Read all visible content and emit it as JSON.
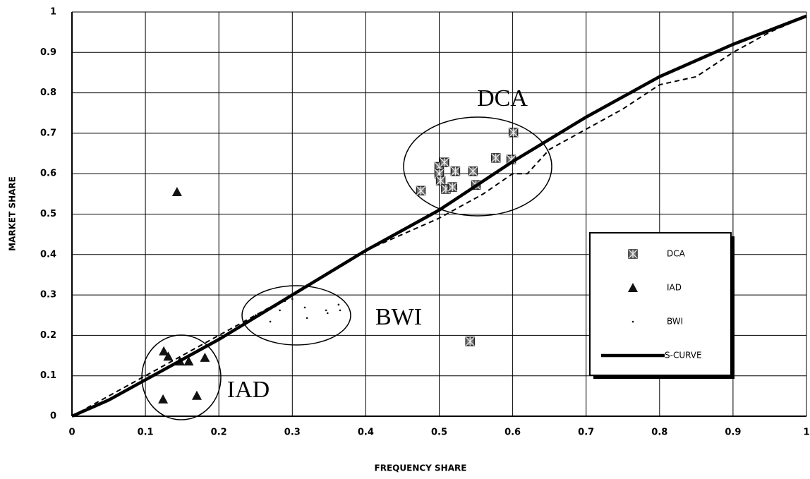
{
  "chart_data": {
    "type": "scatter",
    "xlabel": "FREQUENCY SHARE",
    "ylabel": "MARKET SHARE",
    "xlim": [
      0,
      1
    ],
    "ylim": [
      0,
      1
    ],
    "xticks": [
      0,
      0.1,
      0.2,
      0.3,
      0.4,
      0.5,
      0.6,
      0.7,
      0.8,
      0.9,
      1
    ],
    "yticks": [
      0,
      0.1,
      0.2,
      0.3,
      0.4,
      0.5,
      0.6,
      0.7,
      0.8,
      0.9,
      1
    ],
    "grid": true,
    "legend": "right",
    "annotations": [
      "DCA",
      "BWI",
      "IAD"
    ],
    "series": [
      {
        "name": "DCA",
        "marker": "square",
        "color": "#777777",
        "x": [
          0.475,
          0.5,
          0.5,
          0.502,
          0.507,
          0.509,
          0.518,
          0.522,
          0.546,
          0.55,
          0.577,
          0.598,
          0.601,
          0.542
        ],
        "values": [
          0.558,
          0.617,
          0.6,
          0.583,
          0.628,
          0.562,
          0.567,
          0.606,
          0.606,
          0.572,
          0.639,
          0.635,
          0.702,
          0.185
        ]
      },
      {
        "name": "IAD",
        "marker": "triangle",
        "color": "#111111",
        "x": [
          0.143,
          0.125,
          0.131,
          0.147,
          0.159,
          0.181,
          0.124,
          0.17
        ],
        "values": [
          0.555,
          0.161,
          0.148,
          0.136,
          0.136,
          0.145,
          0.042,
          0.051
        ]
      },
      {
        "name": "BWI",
        "marker": "dot",
        "color": "#111111",
        "x": [
          0.25,
          0.27,
          0.277,
          0.283,
          0.29,
          0.3,
          0.317,
          0.32,
          0.346,
          0.348,
          0.363,
          0.365
        ],
        "values": [
          0.25,
          0.234,
          0.272,
          0.262,
          0.285,
          0.29,
          0.269,
          0.243,
          0.262,
          0.255,
          0.276,
          0.262
        ]
      },
      {
        "name": "S-CURVE",
        "marker": "line",
        "color": "#000000",
        "x": [
          0,
          0.05,
          0.1,
          0.15,
          0.2,
          0.25,
          0.3,
          0.4,
          0.5,
          0.6,
          0.7,
          0.8,
          0.9,
          1
        ],
        "values": [
          0,
          0.04,
          0.09,
          0.14,
          0.19,
          0.245,
          0.3,
          0.41,
          0.51,
          0.63,
          0.74,
          0.84,
          0.92,
          0.99
        ]
      },
      {
        "marker": "dashed",
        "color": "#000000",
        "x": [
          0,
          0.05,
          0.1,
          0.15,
          0.2,
          0.3,
          0.4,
          0.5,
          0.56,
          0.6,
          0.62,
          0.65,
          0.7,
          0.75,
          0.8,
          0.85,
          0.9,
          0.95,
          1
        ],
        "values": [
          0,
          0.05,
          0.1,
          0.15,
          0.2,
          0.3,
          0.41,
          0.49,
          0.55,
          0.6,
          0.6,
          0.66,
          0.71,
          0.76,
          0.82,
          0.84,
          0.9,
          0.95,
          0.99
        ]
      }
    ]
  }
}
